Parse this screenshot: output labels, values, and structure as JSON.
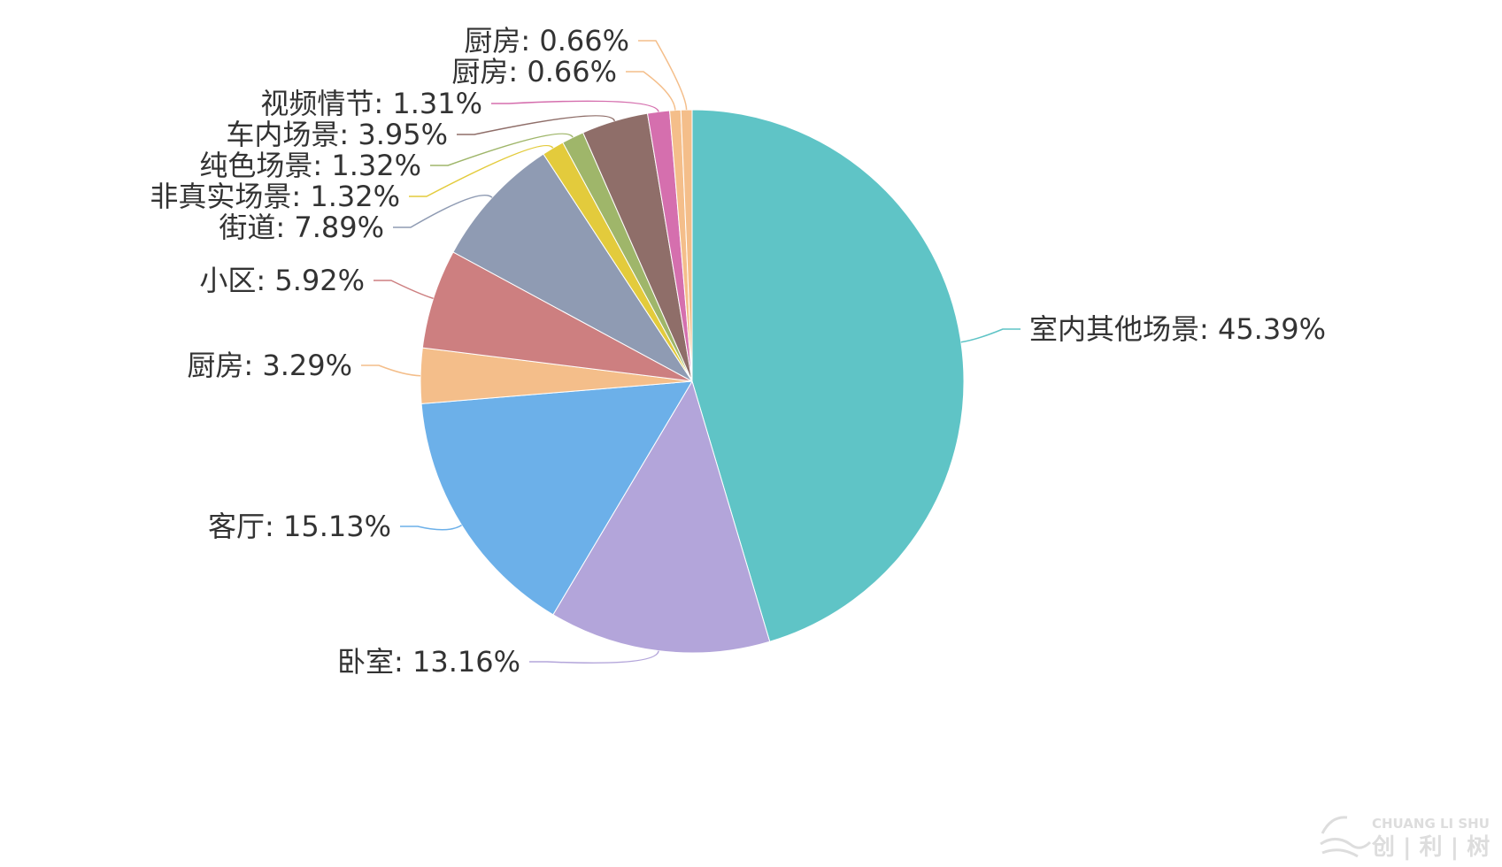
{
  "chart_data": {
    "type": "pie",
    "label_separator": ": ",
    "slices": [
      {
        "name": "室内其他场景",
        "value": 45.39,
        "value_label": "45.39%",
        "color": "#5fc4c6"
      },
      {
        "name": "卧室",
        "value": 13.16,
        "value_label": "13.16%",
        "color": "#b3a5da"
      },
      {
        "name": "客厅",
        "value": 15.13,
        "value_label": "15.13%",
        "color": "#6cb0e9"
      },
      {
        "name": "厨房",
        "value": 3.29,
        "value_label": "3.29%",
        "color": "#f4be8a"
      },
      {
        "name": "小区",
        "value": 5.92,
        "value_label": "5.92%",
        "color": "#cd7f80"
      },
      {
        "name": "街道",
        "value": 7.89,
        "value_label": "7.89%",
        "color": "#8f9bb3"
      },
      {
        "name": "非真实场景",
        "value": 1.32,
        "value_label": "1.32%",
        "color": "#e3cb3c"
      },
      {
        "name": "纯色场景",
        "value": 1.32,
        "value_label": "1.32%",
        "color": "#9fb66a"
      },
      {
        "name": "车内场景",
        "value": 3.95,
        "value_label": "3.95%",
        "color": "#8f6e69"
      },
      {
        "name": "视频情节",
        "value": 1.31,
        "value_label": "1.31%",
        "color": "#d56fae"
      },
      {
        "name": "厨房",
        "value": 0.66,
        "value_label": "0.66%",
        "color": "#f4be8a"
      },
      {
        "name": "厨房",
        "value": 0.66,
        "value_label": "0.66%",
        "color": "#f4be8a"
      }
    ]
  },
  "watermark": {
    "line1": "CHUANG LI SHU",
    "line2": "创 | 利 | 树"
  }
}
